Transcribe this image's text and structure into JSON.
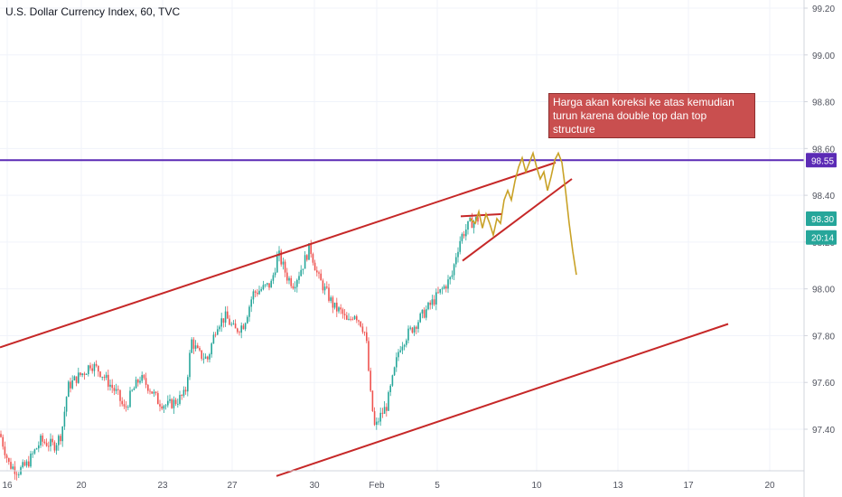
{
  "chart_data": {
    "type": "candlestick",
    "title": "U.S. Dollar Currency Index, 60, TVC",
    "y_axis": {
      "ticks": [
        97.4,
        97.6,
        97.8,
        98.0,
        98.2,
        98.4,
        98.6,
        98.8,
        99.0,
        99.2
      ],
      "tick_labels": [
        "97.40",
        "97.60",
        "97.80",
        "98.00",
        "98.20",
        "98.40",
        "98.60",
        "98.80",
        "99.00",
        "99.20"
      ],
      "range": [
        97.2,
        99.25
      ],
      "position": "right"
    },
    "x_axis": {
      "tick_labels": [
        "16",
        "20",
        "23",
        "27",
        "30",
        "Feb",
        "5",
        "10",
        "13",
        "17",
        "20"
      ]
    },
    "price_labels": [
      {
        "name": "horizontal-resistance",
        "value": "98.55",
        "color": "#5b2bb5"
      },
      {
        "name": "last-price",
        "value": "98.30",
        "color": "#26a69a"
      },
      {
        "name": "countdown",
        "value": "20:14",
        "color": "#26a69a"
      }
    ],
    "annotation": "Harga akan koreksi ke atas kemudian turun karena double top dan top structure",
    "colors": {
      "up": "#26a69a",
      "down": "#ef5350",
      "trendline": "#c62828",
      "projection": "#c9a227",
      "level": "#5b2bb5"
    },
    "price_path": [
      [
        0,
        97.38
      ],
      [
        10,
        97.25
      ],
      [
        20,
        97.22
      ],
      [
        30,
        97.25
      ],
      [
        45,
        97.35
      ],
      [
        60,
        97.33
      ],
      [
        68,
        97.38
      ],
      [
        75,
        97.58
      ],
      [
        85,
        97.62
      ],
      [
        95,
        97.65
      ],
      [
        100,
        97.68
      ],
      [
        110,
        97.65
      ],
      [
        120,
        97.6
      ],
      [
        130,
        97.55
      ],
      [
        138,
        97.48
      ],
      [
        145,
        97.55
      ],
      [
        155,
        97.62
      ],
      [
        165,
        97.58
      ],
      [
        175,
        97.52
      ],
      [
        185,
        97.5
      ],
      [
        195,
        97.52
      ],
      [
        205,
        97.55
      ],
      [
        212,
        97.78
      ],
      [
        220,
        97.72
      ],
      [
        230,
        97.7
      ],
      [
        240,
        97.85
      ],
      [
        250,
        97.88
      ],
      [
        260,
        97.82
      ],
      [
        270,
        97.85
      ],
      [
        280,
        97.98
      ],
      [
        290,
        98.0
      ],
      [
        300,
        98.02
      ],
      [
        308,
        98.15
      ],
      [
        318,
        98.05
      ],
      [
        325,
        98.02
      ],
      [
        335,
        98.1
      ],
      [
        343,
        98.18
      ],
      [
        352,
        98.05
      ],
      [
        362,
        97.98
      ],
      [
        370,
        97.92
      ],
      [
        378,
        97.9
      ],
      [
        385,
        97.85
      ],
      [
        392,
        97.9
      ],
      [
        400,
        97.85
      ],
      [
        405,
        97.8
      ],
      [
        410,
        97.55
      ],
      [
        415,
        97.4
      ],
      [
        420,
        97.45
      ],
      [
        428,
        97.5
      ],
      [
        435,
        97.62
      ],
      [
        442,
        97.75
      ],
      [
        450,
        97.8
      ],
      [
        460,
        97.85
      ],
      [
        470,
        97.9
      ],
      [
        480,
        97.95
      ],
      [
        490,
        98.0
      ],
      [
        500,
        98.05
      ],
      [
        505,
        98.15
      ],
      [
        510,
        98.22
      ],
      [
        515,
        98.25
      ],
      [
        520,
        98.28
      ],
      [
        530,
        98.3
      ]
    ]
  }
}
